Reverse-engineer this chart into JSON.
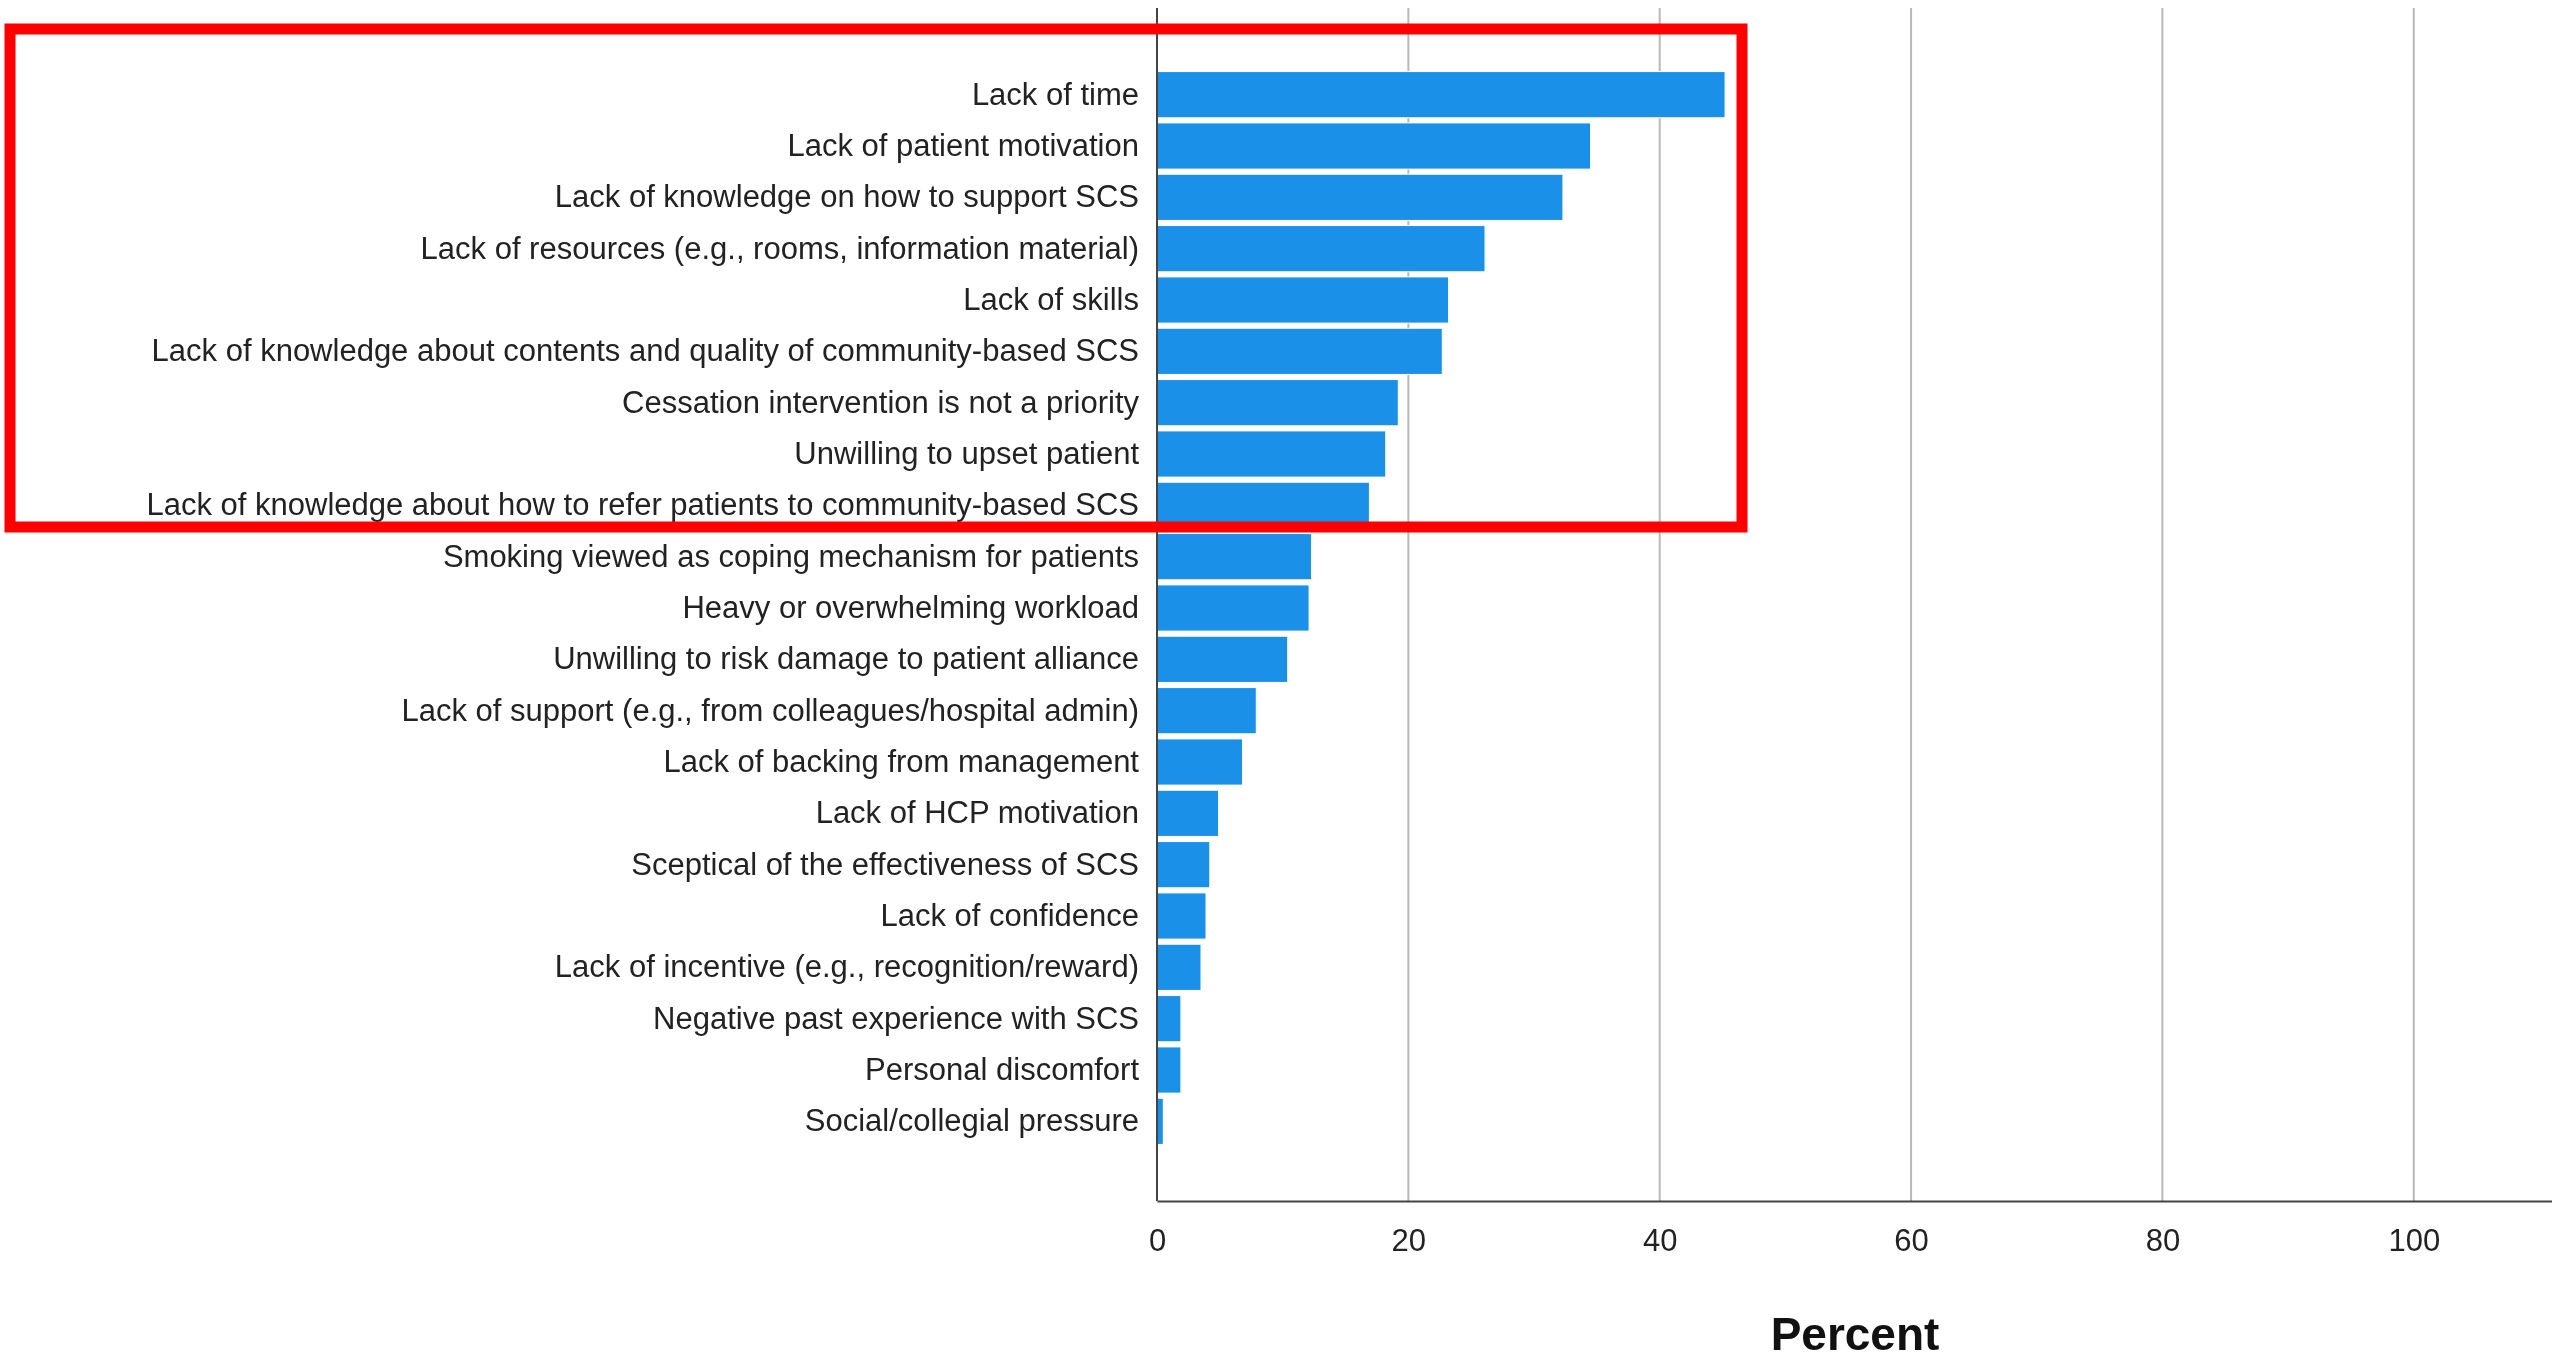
{
  "chart_data": {
    "type": "bar",
    "orientation": "horizontal",
    "xlabel": "Percent",
    "categories": [
      "Lack of time",
      "Lack of patient motivation",
      "Lack of knowledge on how to support SCS",
      "Lack of resources (e.g., rooms, information material)",
      "Lack of skills",
      "Lack of knowledge about contents and quality of community-based SCS",
      "Cessation intervention is not a priority",
      "Unwilling to upset patient",
      "Lack of knowledge about how to refer patients to community-based SCS",
      "Smoking viewed as coping mechanism for patients",
      "Heavy or overwhelming workload",
      "Unwilling to risk damage to patient alliance",
      "Lack of support (e.g., from colleagues/hospital admin)",
      "Lack of backing from management",
      "Lack of HCP motivation",
      "Sceptical of the effectiveness of SCS",
      "Lack of confidence",
      "Lack of incentive (e.g., recognition/reward)",
      "Negative past experience with SCS",
      "Personal discomfort",
      "Social/collegial pressure"
    ],
    "values": [
      45.2,
      34.5,
      32.3,
      26.1,
      23.2,
      22.7,
      19.2,
      18.2,
      16.9,
      12.3,
      12.1,
      10.4,
      7.9,
      6.8,
      4.9,
      4.2,
      3.9,
      3.5,
      1.9,
      1.9,
      0.5
    ],
    "color": "#1a90e8",
    "xlim": [
      0,
      111
    ],
    "xticks": [
      0,
      20,
      40,
      60,
      80,
      100
    ],
    "grid": "x"
  }
}
